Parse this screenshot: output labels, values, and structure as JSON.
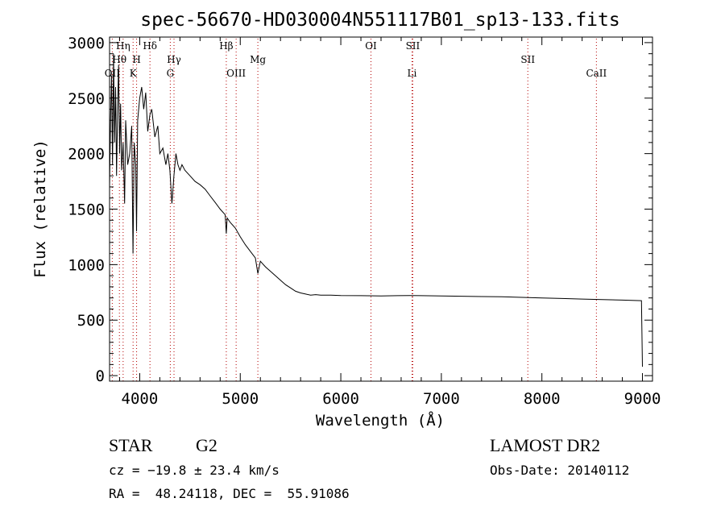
{
  "chart_data": {
    "type": "line",
    "title": "spec-56670-HD030004N551117B01_sp13-133.fits",
    "xlabel": "Wavelength (Å)",
    "ylabel": "Flux (relative)",
    "xlim": [
      3700,
      9100
    ],
    "ylim": [
      -50,
      3050
    ],
    "xticks": [
      4000,
      5000,
      6000,
      7000,
      8000,
      9000
    ],
    "yticks": [
      0,
      500,
      1000,
      1500,
      2000,
      2500,
      3000
    ],
    "grid": false,
    "series": [
      {
        "x": [
          3700,
          3710,
          3720,
          3730,
          3740,
          3750,
          3760,
          3770,
          3780,
          3790,
          3800,
          3810,
          3820,
          3835,
          3850,
          3860,
          3880,
          3900,
          3920,
          3933,
          3945,
          3960,
          3968,
          3980,
          4000,
          4020,
          4040,
          4060,
          4080,
          4101,
          4120,
          4150,
          4180,
          4200,
          4230,
          4260,
          4280,
          4300,
          4320,
          4340,
          4360,
          4380,
          4400,
          4420,
          4450,
          4500,
          4550,
          4600,
          4650,
          4700,
          4750,
          4800,
          4850,
          4861,
          4870,
          4900,
          4950,
          5000,
          5050,
          5100,
          5150,
          5175,
          5200,
          5250,
          5300,
          5350,
          5400,
          5450,
          5500,
          5550,
          5600,
          5650,
          5700,
          5750,
          5800,
          5900,
          6000,
          6200,
          6400,
          6563,
          6700,
          6800,
          7000,
          7200,
          7400,
          7600,
          7800,
          8000,
          8200,
          8400,
          8600,
          8800,
          8990,
          9000
        ],
        "values": [
          1700,
          2300,
          2700,
          1900,
          2900,
          2100,
          2600,
          1800,
          2400,
          2800,
          2000,
          2450,
          1850,
          2100,
          1550,
          2300,
          1900,
          2000,
          2250,
          1100,
          2100,
          1900,
          1300,
          2300,
          2500,
          2600,
          2400,
          2550,
          2200,
          2350,
          2400,
          2150,
          2250,
          2000,
          2050,
          1900,
          2000,
          1850,
          1550,
          1800,
          2000,
          1900,
          1850,
          1900,
          1850,
          1800,
          1750,
          1720,
          1680,
          1620,
          1560,
          1500,
          1450,
          1280,
          1420,
          1380,
          1330,
          1250,
          1180,
          1120,
          1060,
          920,
          1030,
          980,
          940,
          900,
          860,
          820,
          790,
          760,
          745,
          735,
          725,
          730,
          725,
          725,
          722,
          720,
          718,
          720,
          722,
          720,
          718,
          715,
          712,
          710,
          705,
          700,
          695,
          690,
          685,
          680,
          675,
          80
        ]
      }
    ],
    "line_markers": [
      {
        "label": "OII",
        "x": 3727,
        "row": 3
      },
      {
        "label": "Hθ",
        "x": 3798,
        "row": 2
      },
      {
        "label": "Hη",
        "x": 3835,
        "row": 1
      },
      {
        "label": "K",
        "x": 3934,
        "row": 3
      },
      {
        "label": "H",
        "x": 3969,
        "row": 2
      },
      {
        "label": "Hδ",
        "x": 4102,
        "row": 1
      },
      {
        "label": "G",
        "x": 4304,
        "row": 3
      },
      {
        "label": "Hγ",
        "x": 4341,
        "row": 2
      },
      {
        "label": "Hβ",
        "x": 4861,
        "row": 1
      },
      {
        "label": "OIII",
        "x": 4959,
        "row": 3
      },
      {
        "label": "Mg",
        "x": 5175,
        "row": 2
      },
      {
        "label": "OI",
        "x": 6300,
        "row": 1
      },
      {
        "label": "SII",
        "x": 6716,
        "row": 1
      },
      {
        "label": "Li",
        "x": 6708,
        "row": 3
      },
      {
        "label": "SII",
        "x": 7860,
        "row": 2
      },
      {
        "label": "CaII",
        "x": 8542,
        "row": 3
      }
    ]
  },
  "footer": {
    "object_class": "STAR",
    "subclass": "G2",
    "cz": "cz = −19.8 ± 23.4 km/s",
    "coords": "RA =  48.24118, DEC =  55.91086",
    "survey": "LAMOST DR2",
    "obs_date": "Obs-Date: 20140112"
  },
  "colors": {
    "spectrum": "#000000",
    "marker": "#b40000",
    "axes": "#000000"
  }
}
